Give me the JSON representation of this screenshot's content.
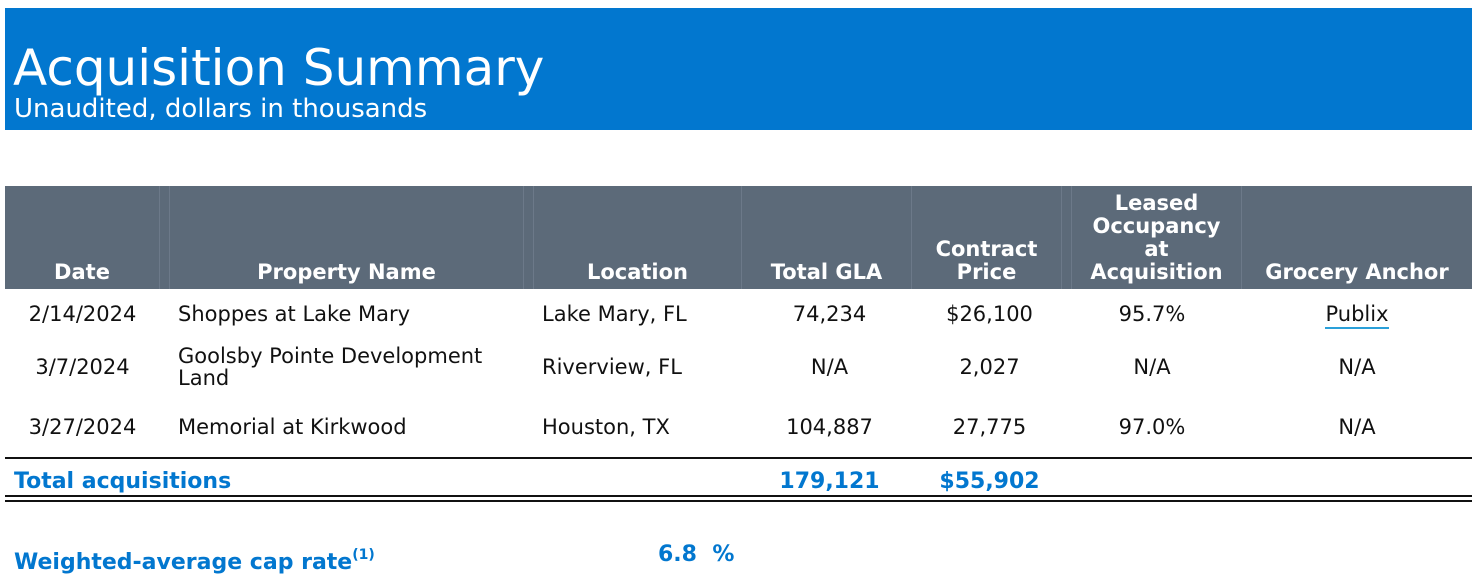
{
  "header": {
    "title": "Acquisition Summary",
    "subtitle": "Unaudited, dollars in thousands"
  },
  "table": {
    "columns": {
      "date": "Date",
      "property": "Property Name",
      "location": "Location",
      "gla": "Total GLA",
      "price_line1": "Contract",
      "price_line2": "Price",
      "occ_line1": "Leased",
      "occ_line2": "Occupancy",
      "occ_line3": "at",
      "occ_line4": "Acquisition",
      "anchor": "Grocery Anchor"
    },
    "rows": [
      {
        "date": "2/14/2024",
        "property": "Shoppes at Lake Mary",
        "location": "Lake Mary, FL",
        "gla": "74,234",
        "price": "$26,100",
        "occupancy": "95.7%",
        "anchor": "Publix"
      },
      {
        "date": "3/7/2024",
        "property_line1": "Goolsby Pointe Development",
        "property_line2": "Land",
        "location": "Riverview, FL",
        "gla": "N/A",
        "price": "2,027",
        "occupancy": "N/A",
        "anchor": "N/A"
      },
      {
        "date": "3/27/2024",
        "property": "Memorial at Kirkwood",
        "location": "Houston, TX",
        "gla": "104,887",
        "price": "27,775",
        "occupancy": "97.0%",
        "anchor": "N/A"
      }
    ],
    "total": {
      "label": "Total acquisitions",
      "gla": "179,121",
      "price": "$55,902"
    }
  },
  "cap_rate": {
    "label": "Weighted-average cap rate",
    "footnote": "(1)",
    "value": "6.8",
    "unit": "%"
  }
}
